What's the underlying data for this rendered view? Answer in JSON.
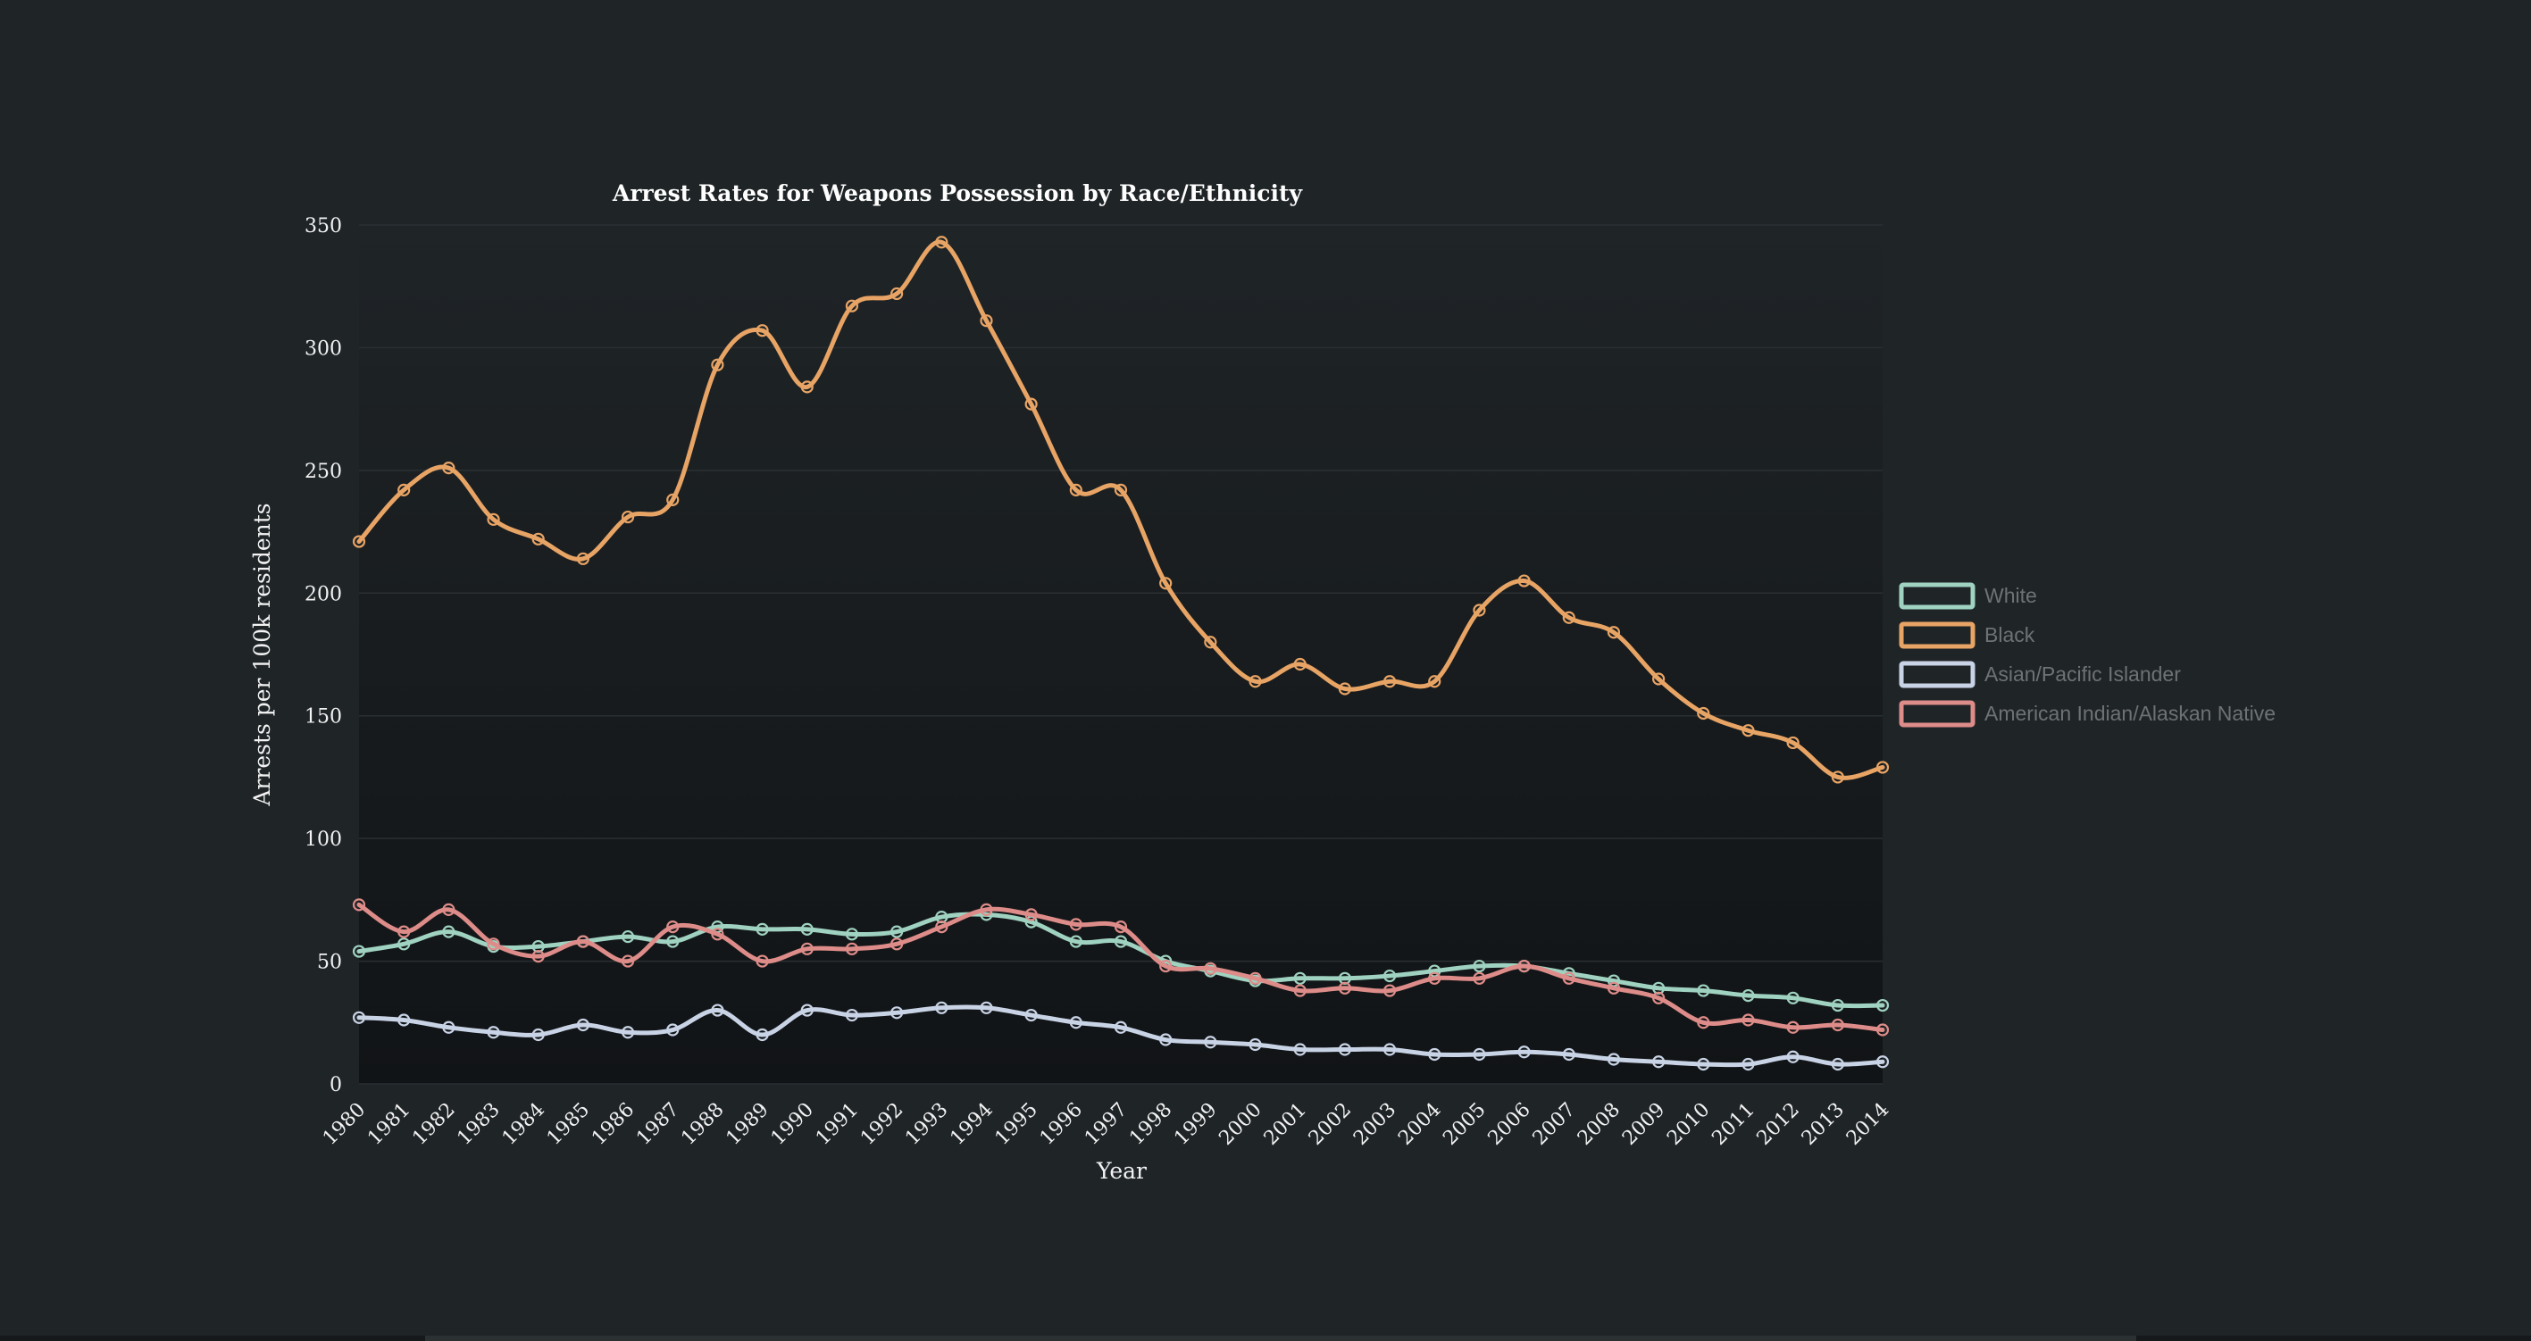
{
  "chart_data": {
    "type": "line",
    "title": "Arrest Rates for Weapons Possession by Race/Ethnicity",
    "xlabel": "Year",
    "ylabel": "Arrests per 100k residents",
    "ylim": [
      0,
      350
    ],
    "y_ticks": [
      "0",
      "50",
      "100",
      "150",
      "200",
      "250",
      "300",
      "350"
    ],
    "grid": true,
    "legend": "right",
    "categories": [
      "1980",
      "1981",
      "1982",
      "1983",
      "1984",
      "1985",
      "1986",
      "1987",
      "1988",
      "1989",
      "1990",
      "1991",
      "1992",
      "1993",
      "1994",
      "1995",
      "1996",
      "1997",
      "1998",
      "1999",
      "2000",
      "2001",
      "2002",
      "2003",
      "2004",
      "2005",
      "2006",
      "2007",
      "2008",
      "2009",
      "2010",
      "2011",
      "2012",
      "2013",
      "2014"
    ],
    "series": [
      {
        "name": "White",
        "color": "#9fd2c0",
        "values": [
          54,
          57,
          62,
          56,
          56,
          58,
          60,
          58,
          64,
          63,
          63,
          61,
          62,
          68,
          69,
          66,
          58,
          58,
          50,
          46,
          42,
          43,
          43,
          44,
          46,
          48,
          48,
          45,
          42,
          39,
          38,
          36,
          35,
          32,
          32
        ]
      },
      {
        "name": "Black",
        "color": "#e8a465",
        "values": [
          221,
          242,
          251,
          230,
          222,
          214,
          231,
          238,
          293,
          307,
          284,
          317,
          322,
          343,
          311,
          277,
          242,
          242,
          204,
          180,
          164,
          171,
          161,
          164,
          164,
          193,
          205,
          190,
          184,
          165,
          151,
          144,
          139,
          125,
          129
        ]
      },
      {
        "name": "Asian/Pacific Islander",
        "color": "#c9d3e6",
        "values": [
          27,
          26,
          23,
          21,
          20,
          24,
          21,
          22,
          30,
          20,
          30,
          28,
          29,
          31,
          31,
          28,
          25,
          23,
          18,
          17,
          16,
          14,
          14,
          14,
          12,
          12,
          13,
          12,
          10,
          9,
          8,
          8,
          11,
          8,
          9
        ]
      },
      {
        "name": "American Indian/Alaskan Native",
        "color": "#de8c89",
        "values": [
          73,
          62,
          71,
          57,
          52,
          58,
          50,
          64,
          61,
          50,
          55,
          55,
          57,
          64,
          71,
          69,
          65,
          64,
          48,
          47,
          43,
          38,
          39,
          38,
          43,
          43,
          48,
          43,
          39,
          35,
          25,
          26,
          23,
          24,
          22
        ]
      }
    ]
  }
}
